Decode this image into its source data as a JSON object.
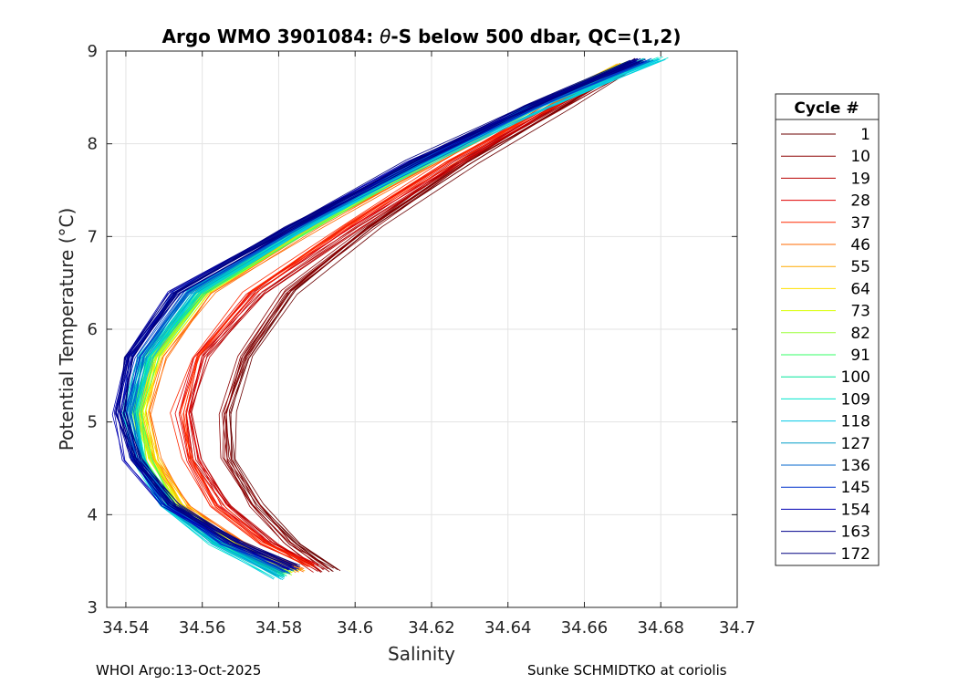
{
  "chart_data": {
    "type": "line",
    "title_prefix": "Argo WMO 3901084: ",
    "title_symbol": "θ",
    "title_suffix": "-S below 500 dbar,  QC=(1,2)",
    "xlabel": "Salinity",
    "ylabel": "Potential Temperature (°C)",
    "xlim": [
      34.535,
      34.7
    ],
    "ylim": [
      3,
      9
    ],
    "xticks": [
      34.54,
      34.56,
      34.58,
      34.6,
      34.62,
      34.64,
      34.66,
      34.68,
      34.7
    ],
    "xtick_labels": [
      "34.54",
      "34.56",
      "34.58",
      "34.6",
      "34.62",
      "34.64",
      "34.66",
      "34.68",
      "34.7"
    ],
    "yticks": [
      3,
      4,
      5,
      6,
      7,
      8,
      9
    ],
    "ytick_labels": [
      "3",
      "4",
      "5",
      "6",
      "7",
      "8",
      "9"
    ],
    "grid": true,
    "legend_title": "Cycle #",
    "legend_position": "outside-right",
    "series": [
      {
        "name": "1",
        "color": "#6b0000",
        "points": [
          [
            34.595,
            3.4
          ],
          [
            34.585,
            3.7
          ],
          [
            34.575,
            4.1
          ],
          [
            34.568,
            4.6
          ],
          [
            34.567,
            5.1
          ],
          [
            34.572,
            5.7
          ],
          [
            34.584,
            6.4
          ],
          [
            34.605,
            7.1
          ],
          [
            34.63,
            7.8
          ],
          [
            34.655,
            8.4
          ],
          [
            34.675,
            8.9
          ]
        ]
      },
      {
        "name": "10",
        "color": "#8b0000",
        "points": [
          [
            34.592,
            3.4
          ],
          [
            34.582,
            3.7
          ],
          [
            34.573,
            4.1
          ],
          [
            34.566,
            4.6
          ],
          [
            34.565,
            5.1
          ],
          [
            34.57,
            5.7
          ],
          [
            34.582,
            6.4
          ],
          [
            34.603,
            7.1
          ],
          [
            34.628,
            7.8
          ],
          [
            34.653,
            8.4
          ],
          [
            34.673,
            8.85
          ]
        ]
      },
      {
        "name": "19",
        "color": "#b80000",
        "points": [
          [
            34.59,
            3.4
          ],
          [
            34.578,
            3.7
          ],
          [
            34.566,
            4.1
          ],
          [
            34.558,
            4.6
          ],
          [
            34.556,
            5.1
          ],
          [
            34.56,
            5.7
          ],
          [
            34.575,
            6.4
          ],
          [
            34.6,
            7.1
          ],
          [
            34.626,
            7.8
          ],
          [
            34.652,
            8.4
          ],
          [
            34.672,
            8.85
          ]
        ]
      },
      {
        "name": "28",
        "color": "#e00000",
        "points": [
          [
            34.589,
            3.45
          ],
          [
            34.576,
            3.7
          ],
          [
            34.564,
            4.1
          ],
          [
            34.557,
            4.6
          ],
          [
            34.555,
            5.1
          ],
          [
            34.559,
            5.7
          ],
          [
            34.573,
            6.4
          ],
          [
            34.598,
            7.1
          ],
          [
            34.625,
            7.8
          ],
          [
            34.651,
            8.4
          ],
          [
            34.671,
            8.85
          ]
        ]
      },
      {
        "name": "37",
        "color": "#ff2a00",
        "points": [
          [
            34.588,
            3.45
          ],
          [
            34.575,
            3.7
          ],
          [
            34.563,
            4.1
          ],
          [
            34.556,
            4.6
          ],
          [
            34.554,
            5.1
          ],
          [
            34.558,
            5.7
          ],
          [
            34.572,
            6.4
          ],
          [
            34.597,
            7.1
          ],
          [
            34.624,
            7.8
          ],
          [
            34.65,
            8.4
          ],
          [
            34.67,
            8.85
          ]
        ]
      },
      {
        "name": "46",
        "color": "#ff6a00",
        "points": [
          [
            34.586,
            3.4
          ],
          [
            34.57,
            3.7
          ],
          [
            34.556,
            4.1
          ],
          [
            34.548,
            4.6
          ],
          [
            34.545,
            5.1
          ],
          [
            34.549,
            5.7
          ],
          [
            34.562,
            6.4
          ],
          [
            34.59,
            7.1
          ],
          [
            34.62,
            7.8
          ],
          [
            34.648,
            8.4
          ],
          [
            34.67,
            8.85
          ]
        ]
      },
      {
        "name": "55",
        "color": "#ffaa00",
        "points": [
          [
            34.585,
            3.4
          ],
          [
            34.568,
            3.7
          ],
          [
            34.555,
            4.1
          ],
          [
            34.547,
            4.6
          ],
          [
            34.544,
            5.1
          ],
          [
            34.548,
            5.7
          ],
          [
            34.561,
            6.4
          ],
          [
            34.589,
            7.1
          ],
          [
            34.619,
            7.8
          ],
          [
            34.647,
            8.4
          ],
          [
            34.669,
            8.85
          ]
        ]
      },
      {
        "name": "64",
        "color": "#ffe100",
        "points": [
          [
            34.584,
            3.4
          ],
          [
            34.567,
            3.7
          ],
          [
            34.554,
            4.1
          ],
          [
            34.547,
            4.6
          ],
          [
            34.544,
            5.1
          ],
          [
            34.548,
            5.7
          ],
          [
            34.561,
            6.4
          ],
          [
            34.589,
            7.1
          ],
          [
            34.619,
            7.8
          ],
          [
            34.647,
            8.4
          ],
          [
            34.669,
            8.85
          ]
        ]
      },
      {
        "name": "73",
        "color": "#d9ff00",
        "points": [
          [
            34.583,
            3.38
          ],
          [
            34.566,
            3.7
          ],
          [
            34.553,
            4.1
          ],
          [
            34.546,
            4.6
          ],
          [
            34.543,
            5.1
          ],
          [
            34.547,
            5.7
          ],
          [
            34.56,
            6.4
          ],
          [
            34.588,
            7.1
          ],
          [
            34.618,
            7.8
          ],
          [
            34.646,
            8.4
          ],
          [
            34.67,
            8.87
          ]
        ]
      },
      {
        "name": "82",
        "color": "#99ff33",
        "points": [
          [
            34.583,
            3.37
          ],
          [
            34.566,
            3.7
          ],
          [
            34.553,
            4.1
          ],
          [
            34.546,
            4.6
          ],
          [
            34.543,
            5.1
          ],
          [
            34.547,
            5.7
          ],
          [
            34.56,
            6.4
          ],
          [
            34.588,
            7.1
          ],
          [
            34.618,
            7.8
          ],
          [
            34.646,
            8.4
          ],
          [
            34.671,
            8.87
          ]
        ]
      },
      {
        "name": "91",
        "color": "#33ff66",
        "points": [
          [
            34.582,
            3.36
          ],
          [
            34.565,
            3.7
          ],
          [
            34.552,
            4.1
          ],
          [
            34.545,
            4.6
          ],
          [
            34.543,
            5.1
          ],
          [
            34.547,
            5.7
          ],
          [
            34.56,
            6.4
          ],
          [
            34.588,
            7.1
          ],
          [
            34.618,
            7.8
          ],
          [
            34.647,
            8.4
          ],
          [
            34.673,
            8.88
          ]
        ]
      },
      {
        "name": "100",
        "color": "#00e699",
        "points": [
          [
            34.581,
            3.35
          ],
          [
            34.564,
            3.7
          ],
          [
            34.551,
            4.1
          ],
          [
            34.544,
            4.6
          ],
          [
            34.542,
            5.1
          ],
          [
            34.546,
            5.7
          ],
          [
            34.559,
            6.4
          ],
          [
            34.587,
            7.1
          ],
          [
            34.618,
            7.8
          ],
          [
            34.648,
            8.4
          ],
          [
            34.676,
            8.9
          ]
        ]
      },
      {
        "name": "109",
        "color": "#00e6cc",
        "points": [
          [
            34.58,
            3.33
          ],
          [
            34.563,
            3.7
          ],
          [
            34.55,
            4.1
          ],
          [
            34.543,
            4.6
          ],
          [
            34.541,
            5.1
          ],
          [
            34.545,
            5.7
          ],
          [
            34.558,
            6.4
          ],
          [
            34.587,
            7.1
          ],
          [
            34.619,
            7.8
          ],
          [
            34.65,
            8.4
          ],
          [
            34.68,
            8.92
          ]
        ]
      },
      {
        "name": "118",
        "color": "#00c8e6",
        "points": [
          [
            34.58,
            3.32
          ],
          [
            34.563,
            3.7
          ],
          [
            34.55,
            4.1
          ],
          [
            34.543,
            4.6
          ],
          [
            34.541,
            5.1
          ],
          [
            34.545,
            5.7
          ],
          [
            34.558,
            6.4
          ],
          [
            34.587,
            7.1
          ],
          [
            34.618,
            7.8
          ],
          [
            34.649,
            8.4
          ],
          [
            34.679,
            8.91
          ]
        ]
      },
      {
        "name": "127",
        "color": "#009ec8",
        "points": [
          [
            34.581,
            3.35
          ],
          [
            34.564,
            3.7
          ],
          [
            34.551,
            4.1
          ],
          [
            34.544,
            4.6
          ],
          [
            34.541,
            5.1
          ],
          [
            34.545,
            5.7
          ],
          [
            34.557,
            6.4
          ],
          [
            34.586,
            7.1
          ],
          [
            34.617,
            7.8
          ],
          [
            34.647,
            8.4
          ],
          [
            34.676,
            8.9
          ]
        ]
      },
      {
        "name": "136",
        "color": "#0066cc",
        "points": [
          [
            34.582,
            3.38
          ],
          [
            34.565,
            3.7
          ],
          [
            34.551,
            4.1
          ],
          [
            34.543,
            4.6
          ],
          [
            34.54,
            5.1
          ],
          [
            34.543,
            5.7
          ],
          [
            34.555,
            6.4
          ],
          [
            34.585,
            7.1
          ],
          [
            34.617,
            7.8
          ],
          [
            34.647,
            8.4
          ],
          [
            34.676,
            8.9
          ]
        ]
      },
      {
        "name": "145",
        "color": "#0033cc",
        "points": [
          [
            34.583,
            3.4
          ],
          [
            34.566,
            3.7
          ],
          [
            34.551,
            4.1
          ],
          [
            34.542,
            4.6
          ],
          [
            34.539,
            5.1
          ],
          [
            34.542,
            5.7
          ],
          [
            34.554,
            6.4
          ],
          [
            34.584,
            7.1
          ],
          [
            34.616,
            7.8
          ],
          [
            34.646,
            8.4
          ],
          [
            34.675,
            8.9
          ]
        ]
      },
      {
        "name": "154",
        "color": "#0000b3",
        "points": [
          [
            34.584,
            3.42
          ],
          [
            34.567,
            3.7
          ],
          [
            34.551,
            4.1
          ],
          [
            34.541,
            4.6
          ],
          [
            34.538,
            5.1
          ],
          [
            34.541,
            5.7
          ],
          [
            34.553,
            6.4
          ],
          [
            34.583,
            7.1
          ],
          [
            34.615,
            7.8
          ],
          [
            34.646,
            8.4
          ],
          [
            34.674,
            8.9
          ]
        ]
      },
      {
        "name": "163",
        "color": "#00008b",
        "points": [
          [
            34.584,
            3.43
          ],
          [
            34.568,
            3.7
          ],
          [
            34.552,
            4.1
          ],
          [
            34.542,
            4.6
          ],
          [
            34.538,
            5.1
          ],
          [
            34.541,
            5.7
          ],
          [
            34.553,
            6.4
          ],
          [
            34.583,
            7.1
          ],
          [
            34.615,
            7.8
          ],
          [
            34.646,
            8.4
          ],
          [
            34.674,
            8.9
          ]
        ]
      },
      {
        "name": "172",
        "color": "#000080",
        "points": [
          [
            34.585,
            3.45
          ],
          [
            34.569,
            3.7
          ],
          [
            34.553,
            4.1
          ],
          [
            34.543,
            4.6
          ],
          [
            34.539,
            5.1
          ],
          [
            34.541,
            5.7
          ],
          [
            34.553,
            6.4
          ],
          [
            34.583,
            7.1
          ],
          [
            34.615,
            7.8
          ],
          [
            34.645,
            8.4
          ],
          [
            34.674,
            8.9
          ]
        ]
      }
    ]
  },
  "footer": {
    "left": "WHOI Argo:13-Oct-2025",
    "right": "Sunke SCHMIDTKO at coriolis"
  }
}
